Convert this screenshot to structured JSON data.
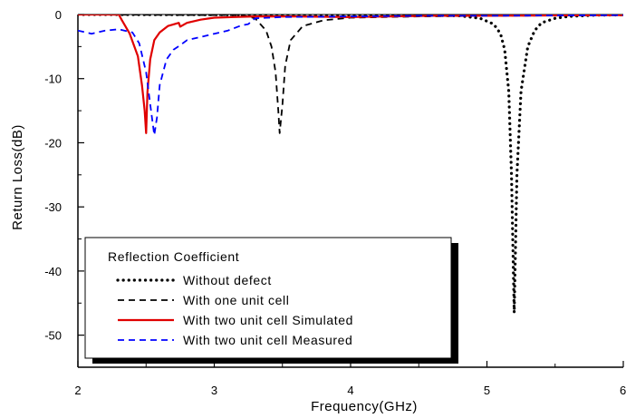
{
  "chart_data": {
    "type": "line",
    "title": "",
    "xlabel": "Frequency(GHz)",
    "ylabel": "Return Loss(dB)",
    "xlim": [
      2,
      6
    ],
    "ylim": [
      -55,
      0
    ],
    "xticks": [
      2,
      3,
      4,
      5,
      6
    ],
    "yticks": [
      0,
      -10,
      -20,
      -30,
      -40,
      -50
    ],
    "xtick_labels": [
      "2",
      "3",
      "4",
      "5",
      "6"
    ],
    "ytick_labels": [
      "0",
      "-10",
      "-20",
      "-30",
      "-40",
      "-50"
    ],
    "grid": false,
    "legend": {
      "title": "Reflection Coefficient",
      "placement": "bottom-left"
    },
    "series": [
      {
        "name": "Without defect",
        "color": "#000000",
        "style": "dotted",
        "x": [
          2.0,
          4.0,
          4.5,
          4.8,
          4.95,
          5.05,
          5.1,
          5.13,
          5.16,
          5.18,
          5.2,
          5.22,
          5.25,
          5.3,
          5.35,
          5.4,
          5.5,
          5.6,
          5.8,
          6.0
        ],
        "y": [
          0.0,
          -0.05,
          -0.1,
          -0.2,
          -0.6,
          -1.5,
          -3.0,
          -5.5,
          -12.0,
          -25.0,
          -46.5,
          -25.0,
          -12.0,
          -5.0,
          -2.5,
          -1.3,
          -0.6,
          -0.3,
          -0.1,
          -0.05
        ]
      },
      {
        "name": "With one unit cell",
        "color": "#000000",
        "style": "dashed",
        "x": [
          2.0,
          3.2,
          3.3,
          3.38,
          3.42,
          3.45,
          3.47,
          3.48,
          3.5,
          3.52,
          3.56,
          3.65,
          3.8,
          4.0,
          4.5,
          5.0,
          6.0
        ],
        "y": [
          0.0,
          -0.1,
          -0.6,
          -2.5,
          -5.0,
          -9.0,
          -15.0,
          -18.5,
          -14.0,
          -8.0,
          -4.0,
          -1.8,
          -0.9,
          -0.5,
          -0.3,
          -0.2,
          -0.1
        ]
      },
      {
        "name": "With two unit cell Simulated",
        "color": "#e00000",
        "style": "solid",
        "x": [
          2.0,
          2.3,
          2.32,
          2.38,
          2.44,
          2.47,
          2.49,
          2.5,
          2.51,
          2.53,
          2.56,
          2.6,
          2.66,
          2.74,
          2.75,
          2.8,
          2.9,
          3.0,
          3.3,
          3.6,
          4.0,
          4.6,
          5.0,
          6.0
        ],
        "y": [
          0.0,
          0.0,
          -0.8,
          -3.0,
          -6.5,
          -11.0,
          -15.0,
          -18.5,
          -12.0,
          -7.0,
          -4.0,
          -2.8,
          -1.8,
          -1.3,
          -1.9,
          -1.3,
          -0.8,
          -0.5,
          -0.3,
          -0.3,
          -0.4,
          -0.2,
          -0.2,
          -0.1
        ]
      },
      {
        "name": "With two unit cell Measured",
        "color": "#0000ff",
        "style": "dashed",
        "x": [
          2.0,
          2.1,
          2.2,
          2.3,
          2.4,
          2.45,
          2.5,
          2.53,
          2.56,
          2.58,
          2.6,
          2.65,
          2.7,
          2.75,
          2.8,
          2.9,
          3.0,
          3.1,
          3.2,
          3.25,
          3.3,
          3.5,
          4.0,
          4.5,
          5.0,
          6.0
        ],
        "y": [
          -2.5,
          -3.0,
          -2.5,
          -2.3,
          -2.8,
          -4.5,
          -9.0,
          -14.0,
          -18.8,
          -16.0,
          -11.0,
          -7.0,
          -5.5,
          -4.8,
          -4.0,
          -3.5,
          -3.0,
          -2.5,
          -1.7,
          -1.5,
          -0.6,
          -0.4,
          -0.3,
          -0.2,
          -0.2,
          -0.1
        ]
      }
    ]
  }
}
